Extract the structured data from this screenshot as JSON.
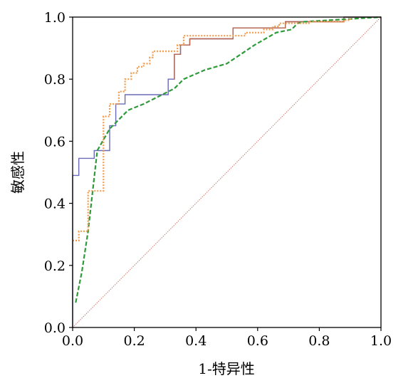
{
  "chart_data": {
    "type": "line",
    "title": "",
    "xlabel": "1-特异性",
    "ylabel": "敏感性",
    "xlim": [
      0,
      1
    ],
    "ylim": [
      0,
      1
    ],
    "x_ticks": [
      "0.0",
      "0.2",
      "0.4",
      "0.6",
      "0.8",
      "1.0"
    ],
    "y_ticks": [
      "0.0",
      "0.2",
      "0.4",
      "0.6",
      "0.8",
      "1.0"
    ],
    "grid": false,
    "legend": "none",
    "series": [
      {
        "color": "#6a6ab8",
        "style": "solid",
        "x": [
          0,
          0,
          0.02,
          0.02,
          0.07,
          0.07,
          0.12,
          0.12,
          0.14,
          0.14,
          0.17,
          0.17,
          0.31,
          0.31,
          0.33,
          0.33,
          0.35,
          0.35,
          0.38,
          0.38,
          0.52,
          0.52,
          0.69,
          0.69,
          0.88,
          0.88,
          1.0
        ],
        "y": [
          0,
          0.49,
          0.49,
          0.545,
          0.545,
          0.57,
          0.57,
          0.65,
          0.65,
          0.72,
          0.72,
          0.75,
          0.75,
          0.8,
          0.8,
          0.88,
          0.88,
          0.91,
          0.91,
          0.93,
          0.93,
          0.965,
          0.965,
          0.985,
          0.985,
          1.0,
          1.0
        ]
      },
      {
        "color": "#b8674e",
        "style": "solid",
        "x": [
          0.33,
          0.33,
          0.35,
          0.35,
          0.38,
          0.38,
          0.52,
          0.52,
          0.69,
          0.69,
          0.88,
          0.88,
          1.0
        ],
        "y": [
          0.8,
          0.88,
          0.88,
          0.91,
          0.91,
          0.93,
          0.93,
          0.965,
          0.965,
          0.985,
          0.985,
          1.0,
          1.0
        ]
      },
      {
        "color": "#2e9a3a",
        "style": "dashed",
        "x": [
          0.01,
          0.01,
          0.03,
          0.03,
          0.05,
          0.05,
          0.08,
          0.08,
          0.12,
          0.12,
          0.15,
          0.15,
          0.18,
          0.18,
          0.23,
          0.23,
          0.33,
          0.33,
          0.36,
          0.36,
          0.43,
          0.43,
          0.5,
          0.5,
          0.53,
          0.53,
          0.59,
          0.59,
          0.66,
          0.66,
          0.71,
          0.71,
          0.73,
          0.73,
          0.75,
          0.75,
          1.0
        ],
        "y": [
          0.08,
          0.08,
          0.18,
          0.18,
          0.31,
          0.31,
          0.57,
          0.57,
          0.64,
          0.64,
          0.67,
          0.67,
          0.7,
          0.7,
          0.72,
          0.72,
          0.77,
          0.77,
          0.8,
          0.8,
          0.83,
          0.83,
          0.85,
          0.85,
          0.87,
          0.87,
          0.91,
          0.91,
          0.95,
          0.95,
          0.96,
          0.96,
          0.98,
          0.98,
          0.985,
          0.985,
          1.0
        ]
      },
      {
        "color": "#f09a4a",
        "style": "dotted",
        "x": [
          0,
          0.02,
          0.02,
          0.05,
          0.05,
          0.1,
          0.1,
          0.12,
          0.12,
          0.15,
          0.15,
          0.17,
          0.17,
          0.19,
          0.19,
          0.21,
          0.21,
          0.23,
          0.23,
          0.25,
          0.25,
          0.26,
          0.26,
          0.34,
          0.34,
          0.36,
          0.36,
          0.56,
          0.56,
          0.62,
          0.62,
          0.65,
          0.65,
          0.67,
          0.67,
          0.77,
          0.77,
          0.88,
          0.88,
          0.9,
          0.9
        ],
        "y": [
          0.28,
          0.28,
          0.31,
          0.31,
          0.44,
          0.44,
          0.68,
          0.68,
          0.72,
          0.72,
          0.76,
          0.76,
          0.8,
          0.8,
          0.82,
          0.82,
          0.84,
          0.84,
          0.85,
          0.85,
          0.87,
          0.87,
          0.89,
          0.89,
          0.91,
          0.91,
          0.94,
          0.94,
          0.95,
          0.95,
          0.96,
          0.96,
          0.97,
          0.97,
          0.98,
          0.98,
          0.985,
          0.985,
          0.99,
          0.99,
          1.0
        ]
      },
      {
        "color": "#c9786a",
        "style": "reference",
        "x": [
          0,
          1
        ],
        "y": [
          0,
          1
        ]
      }
    ]
  }
}
